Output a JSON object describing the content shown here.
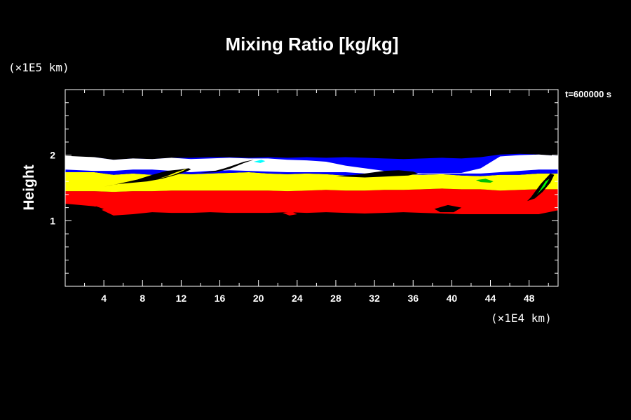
{
  "chart_data": {
    "type": "area",
    "title": "Mixing Ratio [kg/kg]",
    "ylabel": "Height",
    "xlabel": "",
    "x_unit": "(×1E4 km)",
    "y_unit": "(×1E5 km)",
    "annotation": "t=600000 s",
    "xlim": [
      0,
      51
    ],
    "ylim": [
      0,
      3
    ],
    "x_ticks": [
      4,
      8,
      12,
      16,
      20,
      24,
      28,
      32,
      36,
      40,
      44,
      48
    ],
    "y_ticks": [
      1,
      2
    ],
    "x_minor_step": 2,
    "y_minor_step": 0.2,
    "background": "#000000",
    "axis_color": "#ffffff",
    "x_samples": [
      0,
      3,
      5,
      7,
      9,
      11,
      13,
      15,
      17,
      19,
      21,
      23,
      25,
      27,
      29,
      31,
      33,
      35,
      37,
      39,
      41,
      43,
      45,
      47,
      49,
      51
    ],
    "series": [
      {
        "color": "#ff0000",
        "upper": [
          1.45,
          1.45,
          1.44,
          1.45,
          1.45,
          1.46,
          1.46,
          1.46,
          1.46,
          1.46,
          1.46,
          1.45,
          1.46,
          1.47,
          1.46,
          1.46,
          1.47,
          1.47,
          1.48,
          1.49,
          1.48,
          1.48,
          1.46,
          1.47,
          1.48,
          1.48
        ],
        "lower": [
          1.26,
          1.22,
          1.08,
          1.1,
          1.13,
          1.12,
          1.12,
          1.13,
          1.12,
          1.12,
          1.12,
          1.13,
          1.12,
          1.13,
          1.12,
          1.11,
          1.12,
          1.13,
          1.12,
          1.11,
          1.1,
          1.1,
          1.1,
          1.1,
          1.1,
          1.16
        ]
      },
      {
        "color": "#ffff00",
        "upper": [
          1.74,
          1.74,
          1.7,
          1.72,
          1.7,
          1.72,
          1.71,
          1.72,
          1.73,
          1.74,
          1.72,
          1.71,
          1.72,
          1.71,
          1.69,
          1.68,
          1.7,
          1.71,
          1.7,
          1.71,
          1.69,
          1.68,
          1.7,
          1.7,
          1.72,
          1.72
        ],
        "lower": [
          1.45,
          1.45,
          1.44,
          1.45,
          1.45,
          1.46,
          1.46,
          1.46,
          1.46,
          1.46,
          1.46,
          1.45,
          1.46,
          1.47,
          1.46,
          1.46,
          1.47,
          1.47,
          1.48,
          1.49,
          1.48,
          1.48,
          1.46,
          1.47,
          1.48,
          1.48
        ]
      },
      {
        "color": "#0000ff",
        "upper": [
          1.97,
          1.97,
          1.93,
          1.95,
          1.94,
          1.96,
          1.96,
          1.97,
          1.97,
          1.96,
          1.97,
          1.96,
          1.97,
          1.96,
          1.97,
          1.96,
          1.95,
          1.94,
          1.95,
          1.96,
          1.95,
          1.97,
          2.01,
          2.02,
          2.01,
          1.99
        ],
        "lower": [
          1.74,
          1.74,
          1.7,
          1.72,
          1.7,
          1.72,
          1.71,
          1.72,
          1.73,
          1.74,
          1.72,
          1.71,
          1.72,
          1.71,
          1.69,
          1.68,
          1.7,
          1.71,
          1.7,
          1.71,
          1.69,
          1.68,
          1.7,
          1.7,
          1.72,
          1.72
        ]
      },
      {
        "color": "#ffffff",
        "upper": [
          1.99,
          1.97,
          1.93,
          1.95,
          1.94,
          1.96,
          1.94,
          1.95,
          1.96,
          1.95,
          1.95,
          1.93,
          1.92,
          1.9,
          1.84,
          1.8,
          1.76,
          1.74,
          1.72,
          1.72,
          1.73,
          1.8,
          1.98,
          2.0,
          2.01,
          1.99
        ],
        "lower": [
          1.78,
          1.76,
          1.76,
          1.78,
          1.78,
          1.76,
          1.74,
          1.76,
          1.77,
          1.76,
          1.75,
          1.74,
          1.74,
          1.74,
          1.74,
          1.72,
          1.72,
          1.72,
          1.71,
          1.71,
          1.72,
          1.72,
          1.74,
          1.76,
          1.78,
          1.78
        ]
      }
    ],
    "features": [
      {
        "color": "#000000",
        "x": [
          4,
          5.5,
          7,
          8.5,
          10,
          11.5,
          12.5,
          13,
          12.8,
          11.8,
          10.5,
          9,
          7.5,
          6,
          4.8
        ],
        "y": [
          1.52,
          1.56,
          1.58,
          1.6,
          1.64,
          1.7,
          1.75,
          1.78,
          1.8,
          1.78,
          1.76,
          1.7,
          1.63,
          1.58,
          1.54
        ]
      },
      {
        "color": "#000000",
        "x": [
          28,
          30,
          31.5,
          33,
          34.5,
          36,
          36.5,
          35.5,
          34,
          32.5,
          31,
          29.5
        ],
        "y": [
          1.68,
          1.7,
          1.73,
          1.76,
          1.77,
          1.75,
          1.72,
          1.69,
          1.68,
          1.67,
          1.66,
          1.67
        ]
      },
      {
        "color": "#000000",
        "x": [
          14,
          15.5,
          16.5,
          17.5,
          18.5,
          19.5,
          18.5,
          17,
          15.5
        ],
        "y": [
          1.73,
          1.76,
          1.8,
          1.85,
          1.9,
          1.93,
          1.88,
          1.79,
          1.74
        ]
      },
      {
        "color": "#000000",
        "x": [
          47.8,
          48.6,
          49.4,
          50.2,
          50.6,
          50.2,
          49.2,
          48.2
        ],
        "y": [
          1.3,
          1.34,
          1.44,
          1.58,
          1.7,
          1.72,
          1.56,
          1.36
        ]
      },
      {
        "color": "#ffff00",
        "x": [
          9.6,
          10.5,
          11.5,
          12.3,
          12.6,
          12.2,
          11.2,
          10.2
        ],
        "y": [
          1.64,
          1.68,
          1.74,
          1.78,
          1.79,
          1.76,
          1.7,
          1.66
        ]
      },
      {
        "color": "#00ff00",
        "x": [
          48.8,
          49.6,
          50.1,
          49.7,
          49.1
        ],
        "y": [
          1.4,
          1.52,
          1.64,
          1.6,
          1.46
        ]
      },
      {
        "color": "#00c000",
        "x": [
          42.5,
          43.5,
          44.3,
          44,
          43
        ],
        "y": [
          1.62,
          1.64,
          1.6,
          1.58,
          1.59
        ]
      },
      {
        "color": "#00ffff",
        "x": [
          19.5,
          20.3,
          20.7,
          20.2
        ],
        "y": [
          1.9,
          1.93,
          1.91,
          1.88
        ]
      },
      {
        "color": "#ff0000",
        "x": [
          22.5,
          23.4,
          24,
          23.2
        ],
        "y": [
          1.12,
          1.14,
          1.1,
          1.08
        ]
      },
      {
        "color": "#000000",
        "x": [
          2.4,
          3.2,
          4.0,
          3.4
        ],
        "y": [
          1.18,
          1.22,
          1.18,
          1.14
        ]
      },
      {
        "color": "#000000",
        "x": [
          38.2,
          39.6,
          41,
          40.2,
          38.8
        ],
        "y": [
          1.18,
          1.24,
          1.2,
          1.13,
          1.13
        ]
      }
    ]
  }
}
